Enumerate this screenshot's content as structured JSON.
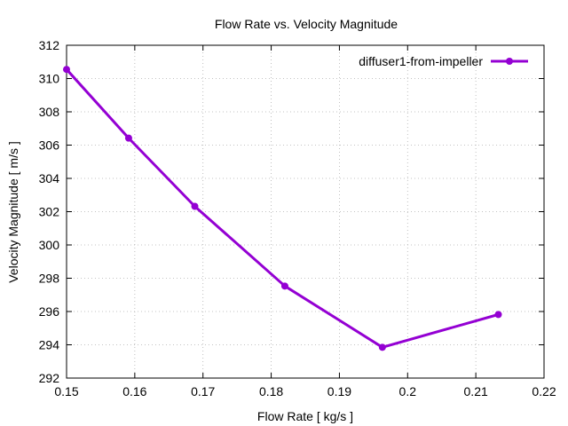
{
  "chart_data": {
    "type": "line",
    "title": "Flow Rate vs. Velocity Magnitude",
    "xlabel": "Flow Rate [ kg/s ]",
    "ylabel": "Velocity Magnitude [ m/s ]",
    "xlim": [
      0.15,
      0.22
    ],
    "ylim": [
      292,
      312
    ],
    "xticks": [
      "0.15",
      "0.16",
      "0.17",
      "0.18",
      "0.19",
      "0.2",
      "0.21",
      "0.22"
    ],
    "yticks": [
      "292",
      "294",
      "296",
      "298",
      "300",
      "302",
      "304",
      "306",
      "308",
      "310",
      "312"
    ],
    "grid": true,
    "legend_position": "top-right",
    "series": [
      {
        "name": "diffuser1-from-impeller",
        "color": "#9400d3",
        "x": [
          0.15,
          0.1591,
          0.1688,
          0.182,
          0.1963,
          0.2133
        ],
        "y": [
          310.55,
          306.42,
          302.32,
          297.53,
          293.85,
          295.82
        ]
      }
    ]
  }
}
